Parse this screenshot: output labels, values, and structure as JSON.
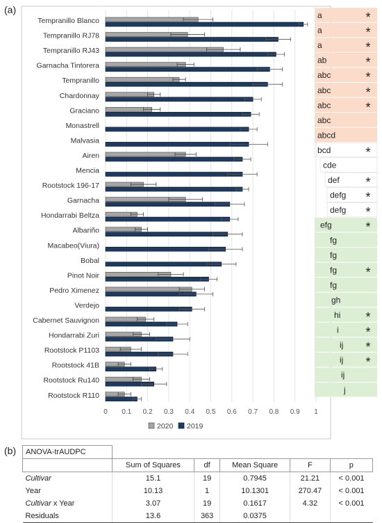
{
  "figure": {
    "label_a": "(a)",
    "label_b": "(b)"
  },
  "chart_data": {
    "type": "bar",
    "orientation": "horizontal",
    "categories": [
      "Tempranillo Blanco",
      "Tempranillo RJ78",
      "Tempranillo RJ43",
      "Garnacha Tintorera",
      "Tempranillo",
      "Chardonnay",
      "Graciano",
      "Monastrell",
      "Malvasia",
      "Airen",
      "Mencia",
      "Rootstock 196-17",
      "Garnacha",
      "Hondarrabi Beltza",
      "Albariño",
      "Macabeo(Viura)",
      "Bobal",
      "Pinot Noir",
      "Pedro Ximenez",
      "Verdejo",
      "Cabernet Sauvignon",
      "Hondarrabi Zuri",
      "Rootstock P1103",
      "Rootstock 41B",
      "Rootstock Ru140",
      "Rootstock R110"
    ],
    "series": [
      {
        "name": "2020",
        "color": "#a6a6a6",
        "values": [
          0.44,
          0.39,
          0.56,
          0.38,
          0.35,
          0.23,
          0.22,
          null,
          null,
          0.38,
          null,
          0.18,
          0.38,
          0.15,
          0.17,
          null,
          null,
          0.31,
          0.41,
          null,
          0.19,
          0.17,
          0.12,
          0.09,
          0.17,
          0.09
        ],
        "errors": [
          0.07,
          0.08,
          0.08,
          0.04,
          0.03,
          0.03,
          0.04,
          null,
          null,
          0.05,
          null,
          0.06,
          0.08,
          0.03,
          0.03,
          null,
          null,
          0.06,
          0.06,
          null,
          0.04,
          0.04,
          0.05,
          0.03,
          0.04,
          0.03
        ]
      },
      {
        "name": "2019",
        "color": "#1f3a5f",
        "values": [
          0.94,
          0.82,
          0.81,
          0.78,
          0.77,
          0.7,
          0.69,
          0.68,
          0.68,
          0.65,
          0.65,
          0.65,
          0.59,
          0.59,
          0.58,
          0.57,
          0.55,
          0.49,
          0.43,
          0.41,
          0.34,
          0.32,
          0.32,
          0.24,
          0.23,
          0.15
        ],
        "errors": [
          0.02,
          0.06,
          0.04,
          0.06,
          0.07,
          0.04,
          0.04,
          0.04,
          0.09,
          0.04,
          0.07,
          0.03,
          0.07,
          0.04,
          0.07,
          0.08,
          0.07,
          0.04,
          0.08,
          0.06,
          0.05,
          0.08,
          0.07,
          0.03,
          0.06,
          0.02
        ]
      }
    ],
    "xlim": [
      0,
      1
    ],
    "xticks": [
      "0",
      "0.1",
      "0.2",
      "0.3",
      "0.4",
      "0.5",
      "0.6",
      "0.7",
      "0.8",
      "0.9",
      "1"
    ],
    "letters": [
      "a",
      "a",
      "a",
      "ab",
      "abc",
      "abc",
      "abc",
      "abc",
      "abcd",
      "bcd",
      "cde",
      "def",
      "defg",
      "defg",
      "efg",
      "fg",
      "fg",
      "fg",
      "fg",
      "gh",
      "hi",
      "i",
      "ij",
      "ij",
      "ij",
      "j"
    ],
    "stars": [
      true,
      true,
      true,
      true,
      true,
      true,
      true,
      false,
      false,
      true,
      false,
      true,
      true,
      true,
      true,
      false,
      false,
      true,
      false,
      false,
      true,
      true,
      true,
      true,
      false,
      false
    ],
    "star_symbol": "*",
    "group_colors": {
      "top": "#fbdccb",
      "mid": "#ffffff",
      "bottom": "#dcefd5"
    },
    "legend": {
      "position": "bottom",
      "items": [
        "2020",
        "2019"
      ]
    }
  },
  "anova": {
    "title": "ANOVA-trAUDPC",
    "headers": [
      "",
      "Sum of Squares",
      "df",
      "Mean Square",
      "F",
      "p"
    ],
    "rows": [
      {
        "term": "Cultivar",
        "term_italic": true,
        "ss": "15.1",
        "df": "19",
        "ms": "0.7945",
        "f": "21.21",
        "p": "< 0.001"
      },
      {
        "term": "Year",
        "term_italic": false,
        "ss": "10.13",
        "df": "1",
        "ms": "10.1301",
        "f": "270.47",
        "p": "< 0.001"
      },
      {
        "term_a": "Cultivar",
        "term_b": " x Year",
        "ss": "3.07",
        "df": "19",
        "ms": "0.1617",
        "f": "4.32",
        "p": "< 0.001"
      },
      {
        "term": "Residuals",
        "term_italic": false,
        "ss": "13.6",
        "df": "363",
        "ms": "0.0375",
        "f": "",
        "p": ""
      }
    ]
  }
}
